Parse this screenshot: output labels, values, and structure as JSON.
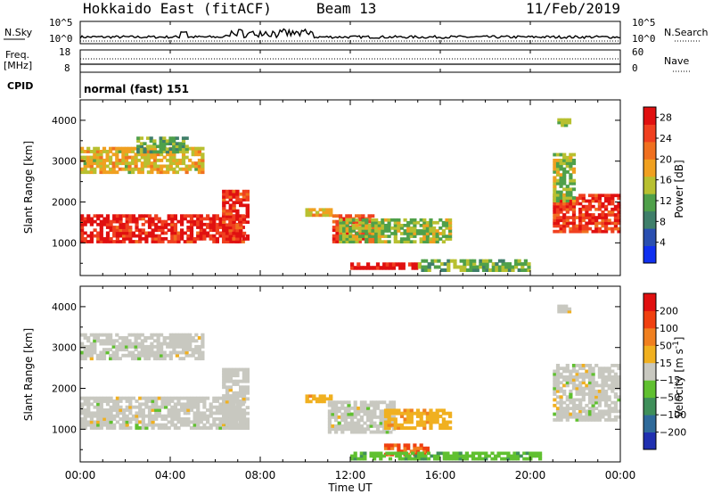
{
  "header": {
    "title": "Hokkaido East (fitACF)",
    "beam": "Beam 13",
    "date": "11/Feb/2019"
  },
  "panels": {
    "nsky": {
      "left_label": "N.Sky",
      "right_label": "N.Search",
      "tick_top": "10^5",
      "tick_bottom": "10^0"
    },
    "freq": {
      "left_label_1": "Freq.",
      "left_label_2": "[MHz]",
      "left_tick_top": "18",
      "left_tick_bottom": "8",
      "right_label": "Nave",
      "right_tick_top": "60",
      "right_tick_bottom": "0"
    },
    "cpid": {
      "label": "CPID",
      "value": "normal (fast) 151"
    }
  },
  "chart_data": [
    {
      "type": "heatmap",
      "title": "",
      "ylabel": "Slant Range [km]",
      "xlabel": "",
      "ylim": [
        200,
        4500
      ],
      "yticks": [
        "1000",
        "2000",
        "3000",
        "4000"
      ],
      "x_tick_labels": [
        "00:00",
        "04:00",
        "08:00",
        "12:00",
        "16:00",
        "20:00",
        "00:00"
      ],
      "colorbar": {
        "label": "Power [dB]",
        "ticks": [
          "4",
          "8",
          "12",
          "16",
          "20",
          "24",
          "28"
        ],
        "range": [
          0,
          30
        ],
        "colors": [
          "#1030f0",
          "#2a4fb0",
          "#3f7f6a",
          "#4fa04a",
          "#b8c030",
          "#f0a020",
          "#f07020",
          "#f04020",
          "#e01010"
        ]
      },
      "regions": [
        {
          "t0": 0.0,
          "t1": 7.3,
          "r0": 1000,
          "r1": 1700,
          "value": 27
        },
        {
          "t0": 6.3,
          "t1": 7.5,
          "r0": 1000,
          "r1": 2300,
          "value": 26
        },
        {
          "t0": 0.0,
          "t1": 5.5,
          "r0": 2700,
          "r1": 3350,
          "value": 17
        },
        {
          "t0": 2.5,
          "t1": 4.8,
          "r0": 3200,
          "r1": 3600,
          "value": 12
        },
        {
          "t0": 10.0,
          "t1": 11.2,
          "r0": 1650,
          "r1": 1850,
          "value": 18
        },
        {
          "t0": 11.2,
          "t1": 13.2,
          "r0": 1000,
          "r1": 1700,
          "value": 24
        },
        {
          "t0": 11.5,
          "t1": 16.5,
          "r0": 1000,
          "r1": 1600,
          "value": 14
        },
        {
          "t0": 12.0,
          "t1": 15.0,
          "r0": 350,
          "r1": 520,
          "value": 29
        },
        {
          "t0": 15.0,
          "t1": 20.0,
          "r0": 300,
          "r1": 600,
          "value": 12
        },
        {
          "t0": 21.0,
          "t1": 24.0,
          "r0": 1250,
          "r1": 2200,
          "value": 26
        },
        {
          "t0": 21.0,
          "t1": 22.0,
          "r0": 2000,
          "r1": 3200,
          "value": 14
        },
        {
          "t0": 21.2,
          "t1": 21.8,
          "r0": 3850,
          "r1": 4050,
          "value": 14
        }
      ]
    },
    {
      "type": "heatmap",
      "title": "",
      "ylabel": "Slant Range [km]",
      "xlabel": "Time UT",
      "ylim": [
        200,
        4500
      ],
      "yticks": [
        "1000",
        "2000",
        "3000",
        "4000"
      ],
      "x_tick_labels": [
        "00:00",
        "04:00",
        "08:00",
        "12:00",
        "16:00",
        "20:00",
        "00:00"
      ],
      "colorbar": {
        "label": "Velocity [m s^-1]",
        "ticks": [
          "200",
          "100",
          "50",
          "15",
          "-15",
          "-50",
          "-100",
          "-200"
        ],
        "range": [
          -250,
          250
        ],
        "colors": [
          "#2030b0",
          "#2f6a9a",
          "#3f8f5a",
          "#60c030",
          "#c8c8c0",
          "#f0b020",
          "#f08020",
          "#f04010",
          "#e01010"
        ]
      },
      "regions": [
        {
          "t0": 0.0,
          "t1": 7.3,
          "r0": 1000,
          "r1": 1800,
          "value": 0
        },
        {
          "t0": 6.3,
          "t1": 7.5,
          "r0": 1000,
          "r1": 2500,
          "value": 0
        },
        {
          "t0": 0.0,
          "t1": 5.5,
          "r0": 2700,
          "r1": 3350,
          "value": 0
        },
        {
          "t0": 10.0,
          "t1": 11.2,
          "r0": 1650,
          "r1": 1850,
          "value": 60
        },
        {
          "t0": 11.0,
          "t1": 14.0,
          "r0": 900,
          "r1": 1700,
          "value": 0
        },
        {
          "t0": 13.5,
          "t1": 16.5,
          "r0": 1000,
          "r1": 1500,
          "value": 60
        },
        {
          "t0": 13.5,
          "t1": 15.5,
          "r0": 350,
          "r1": 650,
          "value": 150
        },
        {
          "t0": 12.0,
          "t1": 20.5,
          "r0": 250,
          "r1": 450,
          "value": -60
        },
        {
          "t0": 21.0,
          "t1": 24.0,
          "r0": 1200,
          "r1": 2600,
          "value": 0
        },
        {
          "t0": 21.2,
          "t1": 21.8,
          "r0": 3850,
          "r1": 4050,
          "value": 0
        }
      ]
    }
  ]
}
